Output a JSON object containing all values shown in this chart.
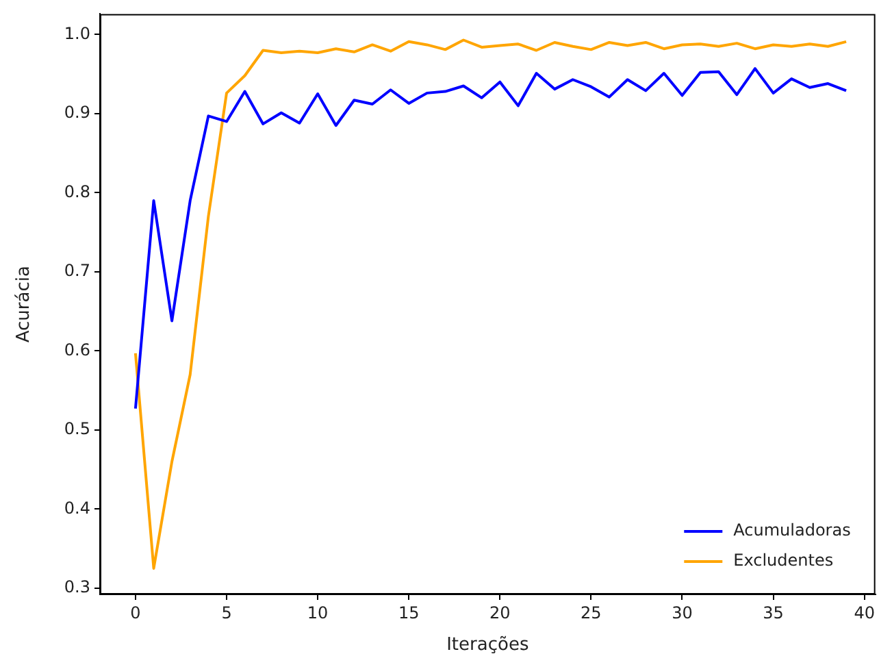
{
  "chart_data": {
    "type": "line",
    "xlabel": "Iterações",
    "ylabel": "Acurácia",
    "x": [
      0,
      1,
      2,
      3,
      4,
      5,
      6,
      7,
      8,
      9,
      10,
      11,
      12,
      13,
      14,
      15,
      16,
      17,
      18,
      19,
      20,
      21,
      22,
      23,
      24,
      25,
      26,
      27,
      28,
      29,
      30,
      31,
      32,
      33,
      34,
      35,
      36,
      37,
      38,
      39
    ],
    "series": [
      {
        "name": "Acumuladoras",
        "color": "#0000ff",
        "values": [
          0.527,
          0.79,
          0.638,
          0.79,
          0.897,
          0.89,
          0.928,
          0.887,
          0.901,
          0.888,
          0.925,
          0.885,
          0.917,
          0.912,
          0.93,
          0.913,
          0.926,
          0.928,
          0.935,
          0.92,
          0.94,
          0.91,
          0.951,
          0.931,
          0.943,
          0.934,
          0.921,
          0.943,
          0.929,
          0.951,
          0.923,
          0.952,
          0.953,
          0.924,
          0.957,
          0.926,
          0.944,
          0.933,
          0.938,
          0.929
        ]
      },
      {
        "name": "Excludentes",
        "color": "#ffa500",
        "values": [
          0.597,
          0.325,
          0.46,
          0.57,
          0.77,
          0.926,
          0.948,
          0.98,
          0.977,
          0.979,
          0.977,
          0.982,
          0.978,
          0.987,
          0.979,
          0.991,
          0.987,
          0.981,
          0.993,
          0.984,
          0.986,
          0.988,
          0.98,
          0.99,
          0.985,
          0.981,
          0.99,
          0.986,
          0.99,
          0.982,
          0.987,
          0.988,
          0.985,
          0.989,
          0.982,
          0.987,
          0.985,
          0.988,
          0.985,
          0.991
        ]
      }
    ],
    "xlim": [
      -1.95,
      40.6
    ],
    "xticks": [
      0,
      5,
      10,
      15,
      20,
      25,
      30,
      35,
      40
    ],
    "ylim": [
      0.292,
      1.026
    ],
    "yticks": [
      {
        "value": 0.3,
        "label": "0.3"
      },
      {
        "value": 0.4,
        "label": "0.4"
      },
      {
        "value": 0.5,
        "label": "0.5"
      },
      {
        "value": 0.6,
        "label": "0.6"
      },
      {
        "value": 0.7,
        "label": "0.7"
      },
      {
        "value": 0.8,
        "label": "0.8"
      },
      {
        "value": 0.9,
        "label": "0.9"
      },
      {
        "value": 1.0,
        "label": "1.0"
      }
    ],
    "legend": "bottom right",
    "marker": "none",
    "line_style": "solid"
  }
}
